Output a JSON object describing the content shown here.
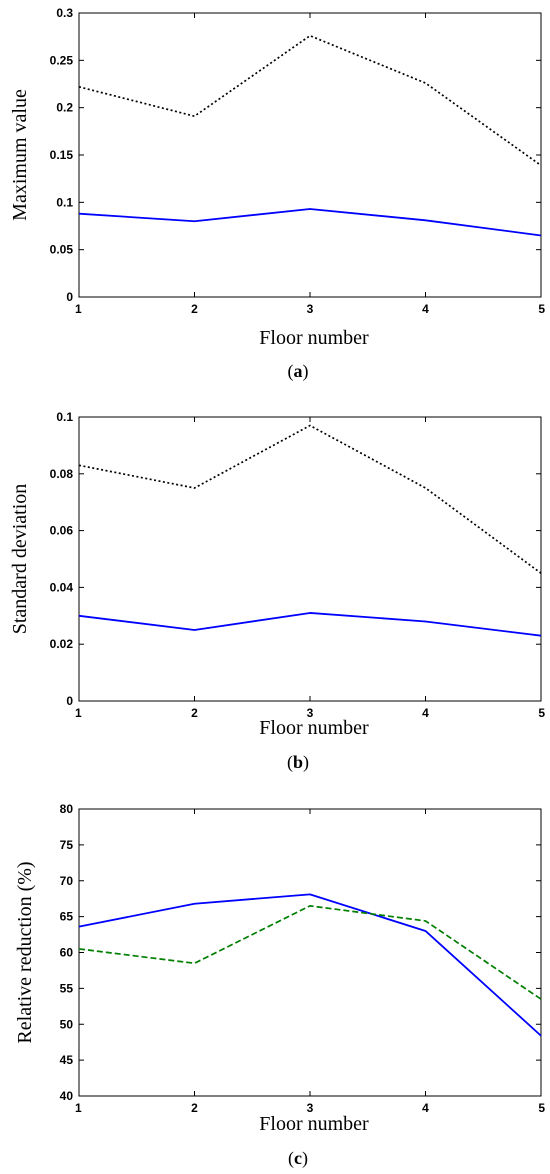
{
  "chart_data": [
    {
      "type": "line",
      "caption_open": "(",
      "caption_letter": "a",
      "caption_close": ")",
      "xlabel": "Floor number",
      "ylabel": "Maximum value",
      "x": [
        1,
        2,
        3,
        4,
        5
      ],
      "xlim": [
        1,
        5
      ],
      "ylim": [
        0,
        0.3
      ],
      "xticks": [
        "1",
        "2",
        "3",
        "4",
        "5"
      ],
      "yticks": [
        0,
        0.05,
        0.1,
        0.15,
        0.2,
        0.25,
        0.3
      ],
      "ytick_labels": [
        "0",
        "0.05",
        "0.1",
        "0.15",
        "0.2",
        "0.25",
        "0.3"
      ],
      "grid": false,
      "series": [
        {
          "values": [
            0.222,
            0.191,
            0.276,
            0.226,
            0.139
          ],
          "color": "#000000",
          "style": "dotted"
        },
        {
          "values": [
            0.088,
            0.08,
            0.093,
            0.081,
            0.065
          ],
          "color": "#0000ff",
          "style": "solid"
        }
      ]
    },
    {
      "type": "line",
      "caption_open": "(",
      "caption_letter": "b",
      "caption_close": ")",
      "xlabel": "Floor number",
      "ylabel": "Standard deviation",
      "x": [
        1,
        2,
        3,
        4,
        5
      ],
      "xlim": [
        1,
        5
      ],
      "ylim": [
        0,
        0.1
      ],
      "xticks": [
        "1",
        "2",
        "3",
        "4",
        "5"
      ],
      "yticks": [
        0,
        0.02,
        0.04,
        0.06,
        0.08,
        0.1
      ],
      "ytick_labels": [
        "0",
        "0.02",
        "0.04",
        "0.06",
        "0.08",
        "0.1"
      ],
      "grid": false,
      "series": [
        {
          "values": [
            0.083,
            0.075,
            0.097,
            0.075,
            0.045
          ],
          "color": "#000000",
          "style": "dotted"
        },
        {
          "values": [
            0.03,
            0.025,
            0.031,
            0.028,
            0.023
          ],
          "color": "#0000ff",
          "style": "solid"
        }
      ]
    },
    {
      "type": "line",
      "caption_open": "(",
      "caption_letter": "c",
      "caption_close": ")",
      "xlabel": "Floor number",
      "ylabel": "Relative reduction (%)",
      "x": [
        1,
        2,
        3,
        4,
        5
      ],
      "xlim": [
        1,
        5
      ],
      "ylim": [
        40,
        80
      ],
      "xticks": [
        "1",
        "2",
        "3",
        "4",
        "5"
      ],
      "yticks": [
        40,
        45,
        50,
        55,
        60,
        65,
        70,
        75,
        80
      ],
      "ytick_labels": [
        "40",
        "45",
        "50",
        "55",
        "60",
        "65",
        "70",
        "75",
        "80"
      ],
      "grid": false,
      "series": [
        {
          "values": [
            63.6,
            66.8,
            68.1,
            63.0,
            48.4
          ],
          "color": "#0000ff",
          "style": "solid"
        },
        {
          "values": [
            60.5,
            58.5,
            66.5,
            64.4,
            53.5
          ],
          "color": "#007f00",
          "style": "dashed"
        }
      ]
    }
  ]
}
